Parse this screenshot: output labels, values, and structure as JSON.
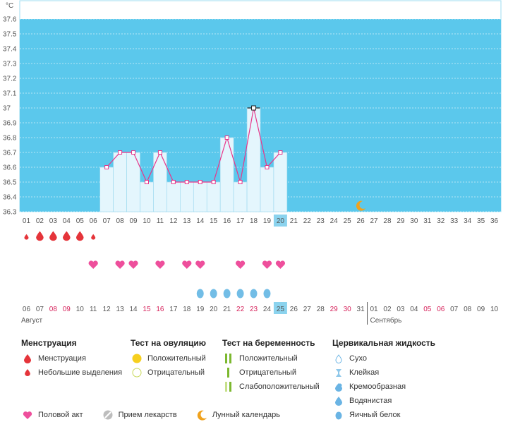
{
  "chart_data": {
    "type": "line",
    "ylabel": "°C",
    "ylim": [
      36.3,
      37.6
    ],
    "yticks": [
      "36.3",
      "36.4",
      "36.5",
      "36.6",
      "36.7",
      "36.8",
      "36.9",
      "37",
      "37.1",
      "37.2",
      "37.3",
      "37.4",
      "37.5",
      "37.6"
    ],
    "cycle_days": [
      "01",
      "02",
      "03",
      "04",
      "05",
      "06",
      "07",
      "08",
      "09",
      "10",
      "11",
      "12",
      "13",
      "14",
      "15",
      "16",
      "17",
      "18",
      "19",
      "20",
      "21",
      "22",
      "23",
      "24",
      "25",
      "26",
      "27",
      "28",
      "29",
      "30",
      "31",
      "32",
      "33",
      "34",
      "35",
      "36"
    ],
    "current_cycle_day": "20",
    "dates": [
      "06",
      "07",
      "08",
      "09",
      "10",
      "11",
      "12",
      "13",
      "14",
      "15",
      "16",
      "17",
      "18",
      "19",
      "20",
      "21",
      "22",
      "23",
      "24",
      "25",
      "26",
      "27",
      "28",
      "29",
      "30",
      "31",
      "01",
      "02",
      "03",
      "04",
      "05",
      "06",
      "07",
      "08",
      "09",
      "10"
    ],
    "weekend_dates_idx": [
      2,
      3,
      9,
      10,
      16,
      17,
      23,
      24,
      30,
      31
    ],
    "current_date": "25",
    "months": [
      {
        "label": "Август",
        "start_idx": 0
      },
      {
        "label": "Сентябрь",
        "start_idx": 26
      }
    ],
    "series": [
      {
        "values": [
          {
            "day": 7,
            "t": 36.6
          },
          {
            "day": 8,
            "t": 36.7
          },
          {
            "day": 9,
            "t": 36.7
          },
          {
            "day": 10,
            "t": 36.5
          },
          {
            "day": 11,
            "t": 36.7
          },
          {
            "day": 12,
            "t": 36.5
          },
          {
            "day": 13,
            "t": 36.5
          },
          {
            "day": 14,
            "t": 36.5
          },
          {
            "day": 15,
            "t": 36.5
          },
          {
            "day": 16,
            "t": 36.8
          },
          {
            "day": 17,
            "t": 36.5
          },
          {
            "day": 18,
            "t": 37.0
          },
          {
            "day": 19,
            "t": 36.6
          },
          {
            "day": 20,
            "t": 36.7
          }
        ]
      }
    ],
    "peak_day": 18,
    "menstruation_days": [
      {
        "day": 1,
        "type": "small"
      },
      {
        "day": 2,
        "type": "full"
      },
      {
        "day": 3,
        "type": "full"
      },
      {
        "day": 4,
        "type": "full"
      },
      {
        "day": 5,
        "type": "full"
      },
      {
        "day": 6,
        "type": "small"
      }
    ],
    "intercourse_days": [
      6,
      8,
      9,
      11,
      13,
      14,
      17,
      19,
      20
    ],
    "fluid_days": [
      {
        "day": 14,
        "type": "egg-white"
      },
      {
        "day": 15,
        "type": "egg-white"
      },
      {
        "day": 16,
        "type": "egg-white"
      },
      {
        "day": 17,
        "type": "egg-white"
      },
      {
        "day": 18,
        "type": "egg-white"
      },
      {
        "day": 19,
        "type": "egg-white"
      }
    ],
    "moon_day": 26
  },
  "legend": {
    "menstruation": {
      "title": "Менструация",
      "items": [
        {
          "icon": "drop-icon",
          "label": "Менструация"
        },
        {
          "icon": "small-drop-icon",
          "label": "Небольшие выделения"
        }
      ]
    },
    "ovulation_test": {
      "title": "Тест на овуляцию",
      "items": [
        {
          "icon": "yellow-dot-icon",
          "label": "Положительный"
        },
        {
          "icon": "empty-circle-icon",
          "label": "Отрицательный"
        }
      ]
    },
    "pregnancy_test": {
      "title": "Тест на беременность",
      "items": [
        {
          "icon": "double-bar-icon",
          "label": "Положительный"
        },
        {
          "icon": "single-bar-icon",
          "label": "Отрицательный"
        },
        {
          "icon": "faint-bar-icon",
          "label": "Слабоположительный"
        }
      ]
    },
    "cervical_fluid": {
      "title": "Цервикальная жидкость",
      "items": [
        {
          "icon": "outline-drop-icon",
          "label": "Сухо"
        },
        {
          "icon": "sticky-icon",
          "label": "Клейкая"
        },
        {
          "icon": "creamy-icon",
          "label": "Кремообразная"
        },
        {
          "icon": "watery-icon",
          "label": "Водянистая"
        },
        {
          "icon": "egg-white-icon",
          "label": "Яичный белок"
        }
      ]
    },
    "bottom": [
      {
        "icon": "heart-icon",
        "label": "Половой акт"
      },
      {
        "icon": "pill-icon",
        "label": "Прием лекарств"
      },
      {
        "icon": "moon-icon",
        "label": "Лунный календарь"
      }
    ]
  }
}
